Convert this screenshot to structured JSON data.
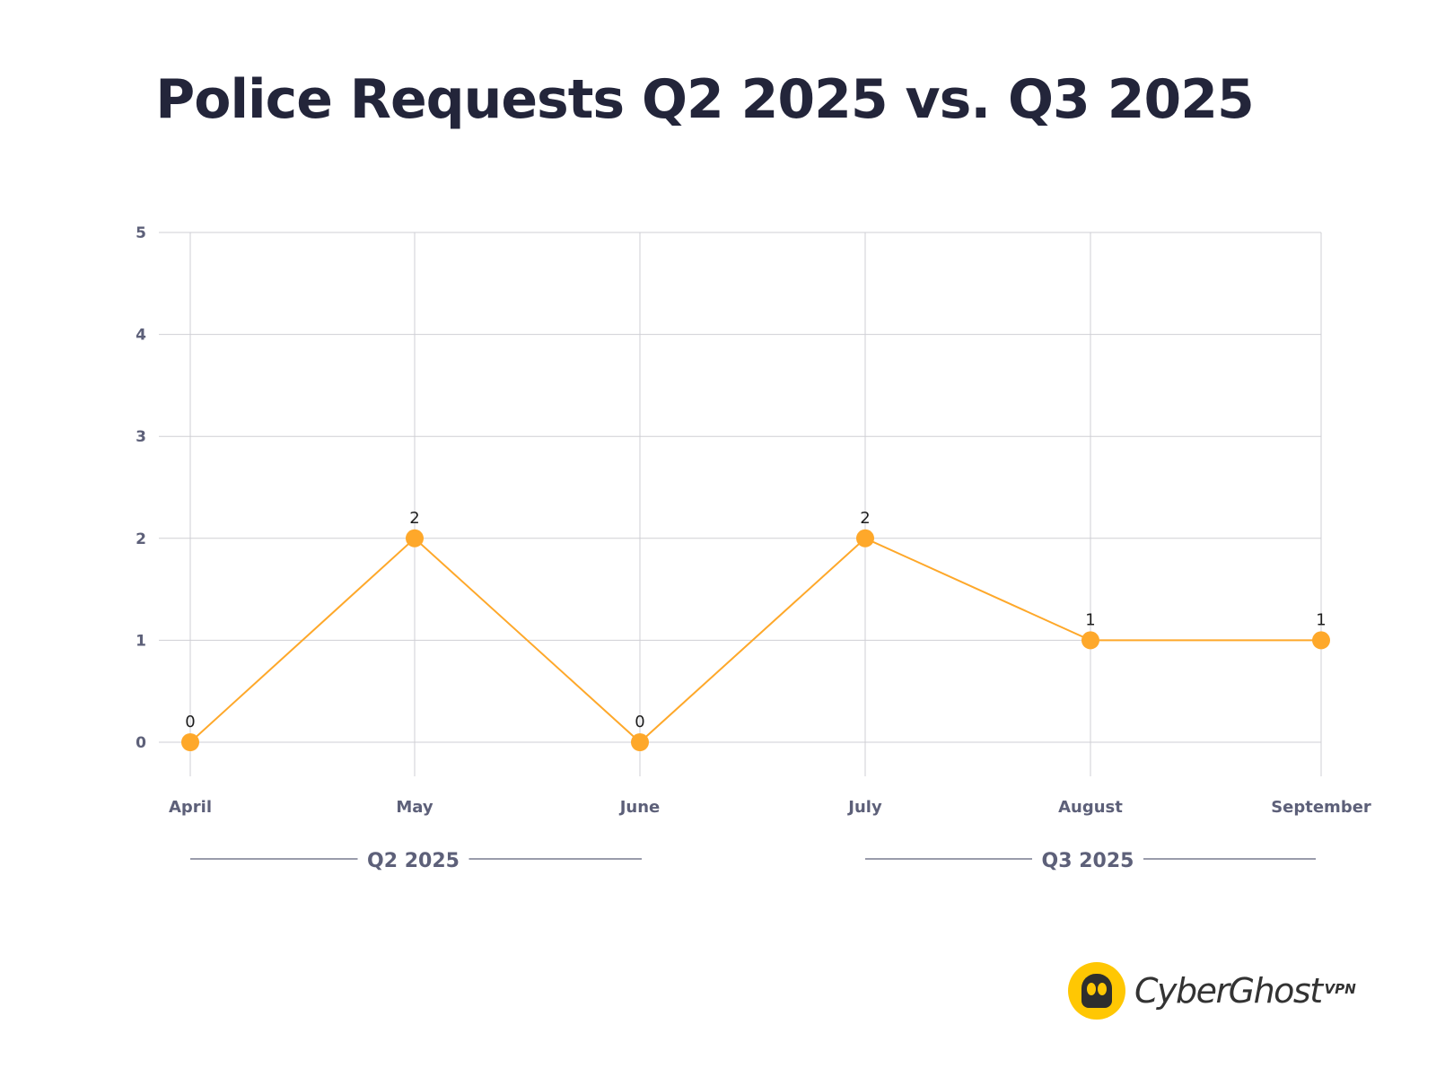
{
  "title": "Police Requests Q2 2025 vs. Q3 2025",
  "chart_data": {
    "type": "line",
    "title": "Police Requests Q2 2025 vs. Q3 2025",
    "xlabel": "",
    "ylabel": "",
    "categories": [
      "April",
      "May",
      "June",
      "July",
      "August",
      "September"
    ],
    "series": [
      {
        "name": "Police Requests",
        "values": [
          0,
          2,
          0,
          2,
          1,
          1
        ],
        "color": "#fea82a"
      }
    ],
    "data_labels": [
      "0",
      "2",
      "0",
      "2",
      "1",
      "1"
    ],
    "ylim": [
      0,
      5
    ],
    "yticks": [
      "0",
      "1",
      "2",
      "3",
      "4",
      "5"
    ],
    "grid": true,
    "legend": "none",
    "category_groups": [
      {
        "label": "Q2 2025",
        "from": "April",
        "to": "June"
      },
      {
        "label": "Q3 2025",
        "from": "July",
        "to": "September"
      }
    ]
  },
  "branding": {
    "logo_text": "CyberGhost",
    "logo_suffix": "VPN",
    "logo_icon": "ghost-icon",
    "brand_color": "#ffc703"
  },
  "colors": {
    "title": "#23253a",
    "axis_text": "#5d6079",
    "grid": "#cfcfd4",
    "line": "#fea82a"
  }
}
